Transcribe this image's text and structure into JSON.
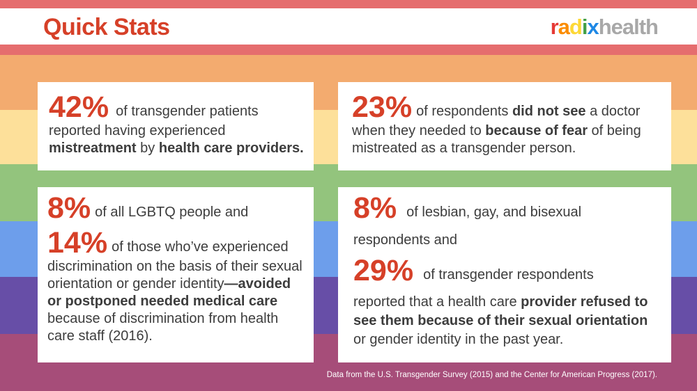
{
  "colors": {
    "bands": [
      "#e56d6e",
      "#f3ab6f",
      "#fde09a",
      "#93c47d",
      "#6d9eeb",
      "#674ea7",
      "#a64d79"
    ],
    "accent": "#d64028",
    "text": "#3d3d3d"
  },
  "header": {
    "title": "Quick Stats",
    "logo_brand": "radix",
    "logo_suffix": "health"
  },
  "stats": [
    {
      "value": "42%",
      "t1": "of transgender patients reported having experienced ",
      "b1": "mistreatment",
      "t2": " by ",
      "b2": "health care providers."
    },
    {
      "value": "23%",
      "t1": "of respondents ",
      "b1": "did not see",
      "t2": " a doctor when they needed to ",
      "b2": "because of fear",
      "t3": " of being mistreated as a transgender person."
    },
    {
      "value_a": "8%",
      "t_a": "of all LGBTQ people and",
      "value_b": "14%",
      "t_b": "of those who’ve experienced discrimination on the basis of their sexual orientation or gender identity",
      "b1": "—avoided or postponed needed medical care",
      "t2": " because of discrimination from health care staff (2016)."
    },
    {
      "value_a": "8%",
      "t_a": "of lesbian, gay, and bisexual respondents and",
      "value_b": "29%",
      "t_b": "of transgender respondents",
      "t1": "reported that a health care ",
      "b1": "provider refused to see them because of their sexual orientation",
      "t2": " or gender identity in the past year."
    }
  ],
  "footer": "Data from the U.S. Transgender Survey (2015) and the Center for American Progress (2017)."
}
